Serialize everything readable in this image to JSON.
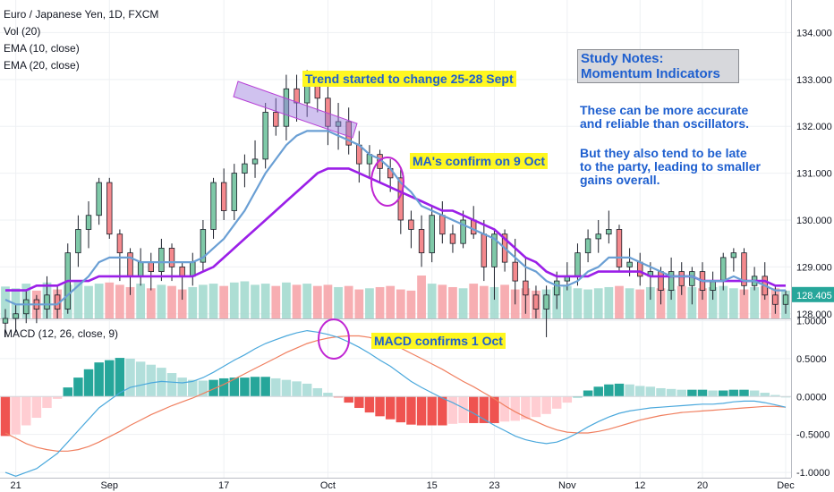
{
  "header": {
    "symbol_line": "Euro / Japanese Yen, 1D, FXCM",
    "vol_line": "Vol (20)",
    "ema10_line": "EMA (10, close)",
    "ema20_line": "EMA (20, close)",
    "macd_line": "MACD (12, 26, close, 9)"
  },
  "annotations": {
    "trend_label": "Trend started to change 25-28 Sept",
    "ma_label": "MA's confirm on 9 Oct",
    "macd_label": "MACD confirms 1 Oct",
    "study_title_1": "Study Notes:",
    "study_title_2": "Momentum Indicators",
    "note1_l1": "These can be more accurate",
    "note1_l2": "and reliable than oscillators.",
    "note2_l1": "But they also tend to be late",
    "note2_l2": "to the party, leading to smaller",
    "note2_l3": "gains overall."
  },
  "colors": {
    "up": "#7fc9a8",
    "down": "#f4898d",
    "vol_up": "#9fd8cc",
    "vol_down": "#f6a0a4",
    "ema10": "#6a9fd4",
    "ema20": "#9b1fe8",
    "macd": "#4aa8dc",
    "signal": "#f07f5f",
    "hist_up_strong": "#26a69a",
    "hist_up_weak": "#b2dfdb",
    "hist_down_strong": "#ef5350",
    "hist_down_weak": "#ffcdd2",
    "annotation": "#c026d3"
  },
  "chart_data": {
    "type": "candlestick",
    "price_axis": {
      "ylim": [
        127.9,
        134.6
      ],
      "ticks": [
        "128.000",
        "129.000",
        "130.000",
        "131.000",
        "132.000",
        "133.000",
        "134.000"
      ]
    },
    "last_price_label": "128.405",
    "macd_axis": {
      "ylim": [
        -1.07,
        1.03
      ],
      "ticks": [
        "1.0000",
        "0.5000",
        "0.0000",
        "-0.5000",
        "-1.0000"
      ]
    },
    "x_labels": [
      {
        "label": "21",
        "bar": 1
      },
      {
        "label": "Sep",
        "bar": 10
      },
      {
        "label": "17",
        "bar": 21
      },
      {
        "label": "Oct",
        "bar": 31
      },
      {
        "label": "15",
        "bar": 41
      },
      {
        "label": "23",
        "bar": 47
      },
      {
        "label": "Nov",
        "bar": 54
      },
      {
        "label": "12",
        "bar": 61
      },
      {
        "label": "20",
        "bar": 67
      },
      {
        "label": "Dec",
        "bar": 75
      }
    ],
    "ohlc": [
      [
        127.8,
        128.1,
        127.5,
        127.9
      ],
      [
        127.9,
        128.2,
        127.6,
        128.0
      ],
      [
        128.0,
        128.5,
        127.8,
        128.3
      ],
      [
        128.3,
        128.4,
        127.8,
        128.1
      ],
      [
        128.1,
        128.8,
        127.9,
        128.4
      ],
      [
        128.4,
        128.6,
        127.9,
        128.1
      ],
      [
        128.1,
        129.5,
        128.0,
        129.3
      ],
      [
        129.3,
        130.1,
        129.0,
        129.8
      ],
      [
        129.8,
        130.4,
        129.4,
        130.1
      ],
      [
        130.1,
        130.9,
        129.9,
        130.8
      ],
      [
        130.8,
        130.9,
        129.6,
        129.7
      ],
      [
        129.7,
        129.8,
        128.7,
        129.3
      ],
      [
        129.3,
        129.4,
        128.4,
        128.8
      ],
      [
        128.8,
        129.4,
        128.6,
        129.1
      ],
      [
        129.1,
        129.3,
        128.5,
        128.9
      ],
      [
        128.9,
        129.6,
        128.7,
        129.4
      ],
      [
        129.4,
        129.5,
        128.7,
        129.0
      ],
      [
        129.0,
        129.1,
        128.3,
        128.8
      ],
      [
        128.8,
        129.3,
        128.6,
        129.1
      ],
      [
        129.1,
        130.0,
        128.9,
        129.8
      ],
      [
        129.8,
        130.9,
        129.6,
        130.8
      ],
      [
        130.8,
        131.1,
        130.0,
        130.2
      ],
      [
        130.2,
        131.2,
        130.0,
        131.0
      ],
      [
        131.0,
        131.4,
        130.7,
        131.2
      ],
      [
        131.2,
        131.7,
        130.9,
        131.3
      ],
      [
        131.3,
        132.5,
        131.1,
        132.3
      ],
      [
        132.3,
        132.6,
        131.8,
        132.0
      ],
      [
        132.0,
        133.1,
        131.7,
        132.8
      ],
      [
        132.8,
        133.1,
        132.1,
        132.5
      ],
      [
        132.5,
        133.2,
        132.2,
        133.0
      ],
      [
        133.0,
        133.1,
        132.3,
        132.6
      ],
      [
        132.6,
        132.9,
        131.6,
        132.0
      ],
      [
        132.0,
        132.5,
        131.5,
        132.1
      ],
      [
        132.1,
        132.4,
        131.4,
        131.6
      ],
      [
        131.6,
        131.9,
        130.8,
        131.2
      ],
      [
        131.2,
        131.6,
        130.9,
        131.4
      ],
      [
        131.4,
        131.5,
        130.8,
        131.1
      ],
      [
        131.1,
        131.3,
        130.6,
        130.9
      ],
      [
        130.9,
        131.1,
        129.7,
        130.0
      ],
      [
        130.0,
        130.2,
        129.4,
        129.8
      ],
      [
        129.8,
        130.1,
        129.0,
        129.3
      ],
      [
        129.3,
        130.3,
        129.1,
        130.1
      ],
      [
        130.1,
        130.4,
        129.5,
        129.7
      ],
      [
        129.7,
        129.9,
        129.3,
        129.5
      ],
      [
        129.5,
        130.2,
        129.4,
        130.0
      ],
      [
        130.0,
        130.3,
        129.6,
        129.7
      ],
      [
        129.7,
        130.0,
        128.7,
        129.0
      ],
      [
        129.0,
        129.8,
        128.3,
        129.7
      ],
      [
        129.7,
        129.8,
        128.9,
        129.1
      ],
      [
        129.1,
        129.6,
        128.2,
        128.7
      ],
      [
        128.7,
        129.2,
        128.0,
        128.4
      ],
      [
        128.4,
        128.6,
        127.9,
        128.1
      ],
      [
        128.1,
        128.6,
        127.5,
        128.4
      ],
      [
        128.4,
        128.9,
        128.1,
        128.7
      ],
      [
        128.7,
        129.1,
        128.5,
        128.8
      ],
      [
        128.8,
        129.5,
        128.6,
        129.3
      ],
      [
        129.3,
        129.8,
        129.1,
        129.6
      ],
      [
        129.6,
        130.0,
        129.3,
        129.7
      ],
      [
        129.7,
        130.2,
        129.5,
        129.8
      ],
      [
        129.8,
        129.9,
        128.9,
        129.0
      ],
      [
        129.0,
        129.4,
        128.8,
        129.1
      ],
      [
        129.1,
        129.3,
        128.6,
        128.8
      ],
      [
        128.8,
        129.1,
        128.3,
        128.9
      ],
      [
        128.9,
        129.0,
        128.2,
        128.5
      ],
      [
        128.5,
        129.2,
        128.3,
        128.9
      ],
      [
        128.9,
        129.1,
        128.4,
        128.6
      ],
      [
        128.6,
        129.0,
        128.2,
        128.9
      ],
      [
        128.9,
        129.1,
        128.3,
        128.5
      ],
      [
        128.5,
        128.9,
        128.3,
        128.7
      ],
      [
        128.7,
        129.3,
        128.5,
        129.2
      ],
      [
        129.2,
        129.4,
        128.9,
        129.3
      ],
      [
        129.3,
        129.4,
        128.4,
        128.6
      ],
      [
        128.6,
        129.0,
        128.5,
        128.8
      ],
      [
        128.8,
        129.1,
        128.3,
        128.4
      ],
      [
        128.4,
        128.6,
        128.0,
        128.2
      ],
      [
        128.2,
        128.5,
        128.0,
        128.4
      ]
    ],
    "volume": [
      55,
      52,
      60,
      48,
      62,
      50,
      58,
      64,
      56,
      60,
      62,
      58,
      54,
      60,
      52,
      58,
      56,
      50,
      54,
      58,
      60,
      56,
      62,
      64,
      58,
      60,
      56,
      62,
      58,
      60,
      56,
      58,
      54,
      56,
      50,
      52,
      54,
      56,
      50,
      48,
      74,
      60,
      58,
      54,
      52,
      60,
      56,
      54,
      58,
      50,
      52,
      48,
      50,
      54,
      56,
      52,
      50,
      52,
      54,
      56,
      52,
      50,
      54,
      52,
      50,
      56,
      54,
      52,
      54,
      56,
      52,
      50,
      54,
      56,
      52,
      48
    ],
    "series": [
      {
        "name": "EMA (10, close)",
        "values": [
          128.3,
          128.2,
          128.2,
          128.2,
          128.2,
          128.2,
          128.4,
          128.6,
          128.8,
          129.1,
          129.2,
          129.2,
          129.2,
          129.1,
          129.1,
          129.1,
          129.1,
          129.1,
          129.1,
          129.2,
          129.4,
          129.6,
          129.9,
          130.2,
          130.6,
          131.0,
          131.3,
          131.6,
          131.8,
          131.9,
          131.9,
          131.9,
          131.8,
          131.7,
          131.6,
          131.4,
          131.3,
          131.1,
          130.8,
          130.6,
          130.3,
          130.2,
          130.1,
          130.0,
          129.9,
          129.8,
          129.7,
          129.6,
          129.4,
          129.2,
          129.0,
          128.9,
          128.7,
          128.6,
          128.6,
          128.7,
          128.9,
          129.0,
          129.2,
          129.2,
          129.2,
          129.1,
          129.0,
          128.9,
          128.8,
          128.8,
          128.8,
          128.7,
          128.7,
          128.7,
          128.8,
          128.7,
          128.7,
          128.6,
          128.5,
          128.5
        ]
      },
      {
        "name": "EMA (20, close)",
        "values": [
          128.5,
          128.5,
          128.5,
          128.6,
          128.6,
          128.6,
          128.7,
          128.7,
          128.7,
          128.8,
          128.8,
          128.8,
          128.8,
          128.8,
          128.8,
          128.8,
          128.8,
          128.8,
          128.8,
          128.9,
          129.0,
          129.2,
          129.4,
          129.6,
          129.8,
          130.0,
          130.2,
          130.4,
          130.6,
          130.8,
          131.0,
          131.1,
          131.1,
          131.1,
          131.0,
          130.9,
          130.8,
          130.7,
          130.6,
          130.5,
          130.4,
          130.3,
          130.2,
          130.2,
          130.1,
          130.0,
          129.9,
          129.8,
          129.6,
          129.4,
          129.2,
          129.1,
          128.9,
          128.8,
          128.8,
          128.8,
          128.8,
          128.9,
          128.9,
          128.9,
          128.9,
          128.9,
          128.8,
          128.8,
          128.8,
          128.8,
          128.8,
          128.7,
          128.7,
          128.7,
          128.7,
          128.7,
          128.7,
          128.7,
          128.6,
          128.6
        ]
      },
      {
        "name": "MACD",
        "values": [
          -1.0,
          -1.05,
          -1.0,
          -0.95,
          -0.85,
          -0.75,
          -0.6,
          -0.45,
          -0.3,
          -0.15,
          -0.05,
          0.05,
          0.12,
          0.15,
          0.18,
          0.2,
          0.19,
          0.18,
          0.2,
          0.25,
          0.32,
          0.4,
          0.48,
          0.55,
          0.63,
          0.7,
          0.75,
          0.8,
          0.84,
          0.87,
          0.85,
          0.82,
          0.78,
          0.72,
          0.65,
          0.57,
          0.48,
          0.4,
          0.3,
          0.2,
          0.12,
          0.05,
          -0.02,
          -0.08,
          -0.15,
          -0.22,
          -0.3,
          -0.38,
          -0.45,
          -0.52,
          -0.57,
          -0.6,
          -0.62,
          -0.6,
          -0.55,
          -0.48,
          -0.4,
          -0.33,
          -0.27,
          -0.22,
          -0.19,
          -0.17,
          -0.15,
          -0.14,
          -0.13,
          -0.12,
          -0.11,
          -0.1,
          -0.1,
          -0.09,
          -0.07,
          -0.06,
          -0.06,
          -0.08,
          -0.11,
          -0.14
        ]
      },
      {
        "name": "Signal",
        "values": [
          -0.48,
          -0.55,
          -0.62,
          -0.67,
          -0.7,
          -0.72,
          -0.72,
          -0.7,
          -0.66,
          -0.6,
          -0.53,
          -0.46,
          -0.38,
          -0.31,
          -0.24,
          -0.18,
          -0.12,
          -0.07,
          -0.02,
          0.04,
          0.1,
          0.16,
          0.23,
          0.3,
          0.37,
          0.44,
          0.51,
          0.58,
          0.64,
          0.7,
          0.74,
          0.77,
          0.79,
          0.8,
          0.8,
          0.78,
          0.74,
          0.7,
          0.64,
          0.57,
          0.5,
          0.43,
          0.36,
          0.28,
          0.2,
          0.13,
          0.05,
          -0.03,
          -0.12,
          -0.2,
          -0.27,
          -0.33,
          -0.39,
          -0.44,
          -0.47,
          -0.48,
          -0.48,
          -0.46,
          -0.43,
          -0.39,
          -0.35,
          -0.31,
          -0.28,
          -0.25,
          -0.23,
          -0.21,
          -0.2,
          -0.19,
          -0.18,
          -0.17,
          -0.16,
          -0.15,
          -0.14,
          -0.13,
          -0.13,
          -0.14
        ]
      },
      {
        "name": "Histogram",
        "values": [
          -0.52,
          -0.5,
          -0.38,
          -0.28,
          -0.15,
          -0.03,
          0.12,
          0.25,
          0.36,
          0.45,
          0.48,
          0.51,
          0.5,
          0.46,
          0.42,
          0.38,
          0.31,
          0.25,
          0.22,
          0.21,
          0.22,
          0.24,
          0.25,
          0.25,
          0.26,
          0.26,
          0.24,
          0.22,
          0.2,
          0.17,
          0.11,
          0.05,
          -0.01,
          -0.08,
          -0.15,
          -0.21,
          -0.26,
          -0.3,
          -0.34,
          -0.37,
          -0.38,
          -0.38,
          -0.38,
          -0.36,
          -0.35,
          -0.35,
          -0.35,
          -0.35,
          -0.33,
          -0.32,
          -0.3,
          -0.27,
          -0.23,
          -0.16,
          -0.08,
          0.0,
          0.08,
          0.13,
          0.16,
          0.17,
          0.16,
          0.14,
          0.13,
          0.11,
          0.1,
          0.09,
          0.09,
          0.09,
          0.08,
          0.08,
          0.09,
          0.09,
          0.08,
          0.05,
          0.02,
          -0.0
        ]
      }
    ]
  }
}
